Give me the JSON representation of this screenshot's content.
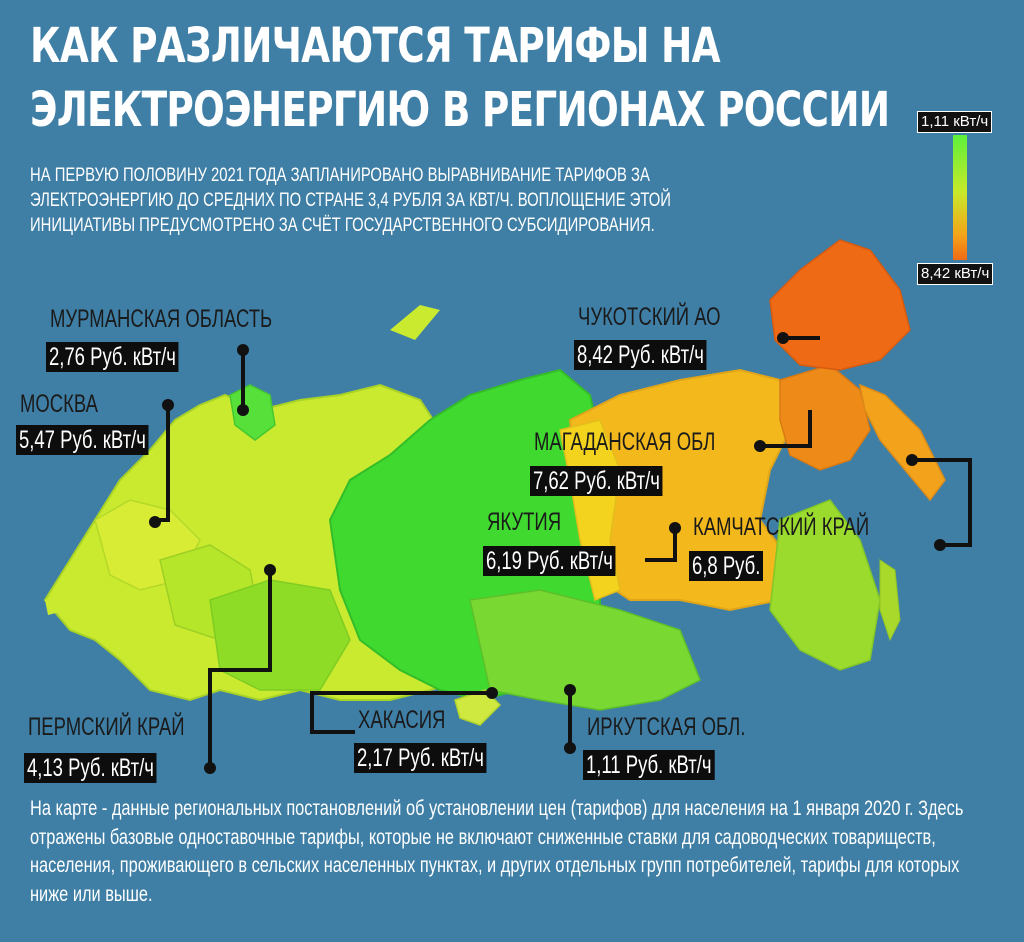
{
  "title_line1": "КАК РАЗЛИЧАЮТСЯ ТАРИФЫ НА",
  "title_line2": "ЭЛЕКТРОЭНЕРГИЮ В РЕГИОНАХ РОССИИ",
  "subtitle": "НА ПЕРВУЮ ПОЛОВИНУ 2021 ГОДА ЗАПЛАНИРОВАНО ВЫРАВНИВАНИЕ ТАРИФОВ ЗА ЭЛЕКТРОЭНЕРГИЮ ДО СРЕДНИХ ПО СТРАНЕ 3,4 РУБЛЯ ЗА КВТ/Ч. ВОПЛОЩЕНИЕ ЭТОЙ ИНИЦИАТИВЫ ПРЕДУСМОТРЕНО ЗА СЧЁТ ГОСУДАРСТВЕННОГО СУБСИДИРОВАНИЯ.",
  "legend": {
    "min_label": "1,11 кВт/ч",
    "max_label": "8,42 кВт/ч",
    "min_color": "#5ef03a",
    "max_color": "#ef6a14"
  },
  "regions": [
    {
      "name": "МУРМАНСКАЯ ОБЛАСТЬ",
      "value": "2,76 Руб. кВт/ч"
    },
    {
      "name": "МОСКВА",
      "value": "5,47 Руб. кВт/ч"
    },
    {
      "name": "ЧУКОТСКИЙ АО",
      "value": "8,42 Руб. кВт/ч"
    },
    {
      "name": "МАГАДАНСКАЯ ОБЛ",
      "value": "7,62 Руб. кВт/ч"
    },
    {
      "name": "ЯКУТИЯ",
      "value": "6,19 Руб. кВт/ч"
    },
    {
      "name": "КАМЧАТСКИЙ КРАЙ",
      "value": "6,8 Руб."
    },
    {
      "name": "ПЕРМСКИЙ КРАЙ",
      "value": "4,13 Руб. кВт/ч"
    },
    {
      "name": "ХАКАСИЯ",
      "value": "2,17 Руб. кВт/ч"
    },
    {
      "name": "ИРКУТСКАЯ ОБЛ.",
      "value": "1,11 Руб. кВт/ч"
    }
  ],
  "footnote": "На карте - данные региональных постановлений об установлении цен (тарифов) для населения на 1 января 2020 г. Здесь отражены базовые одноставочные тарифы, которые не включают сниженные ставки для садоводческих товариществ, населения, проживающего в сельских населенных пунктах, и других отдельных групп потребителей, тарифы для которых ниже или выше."
}
